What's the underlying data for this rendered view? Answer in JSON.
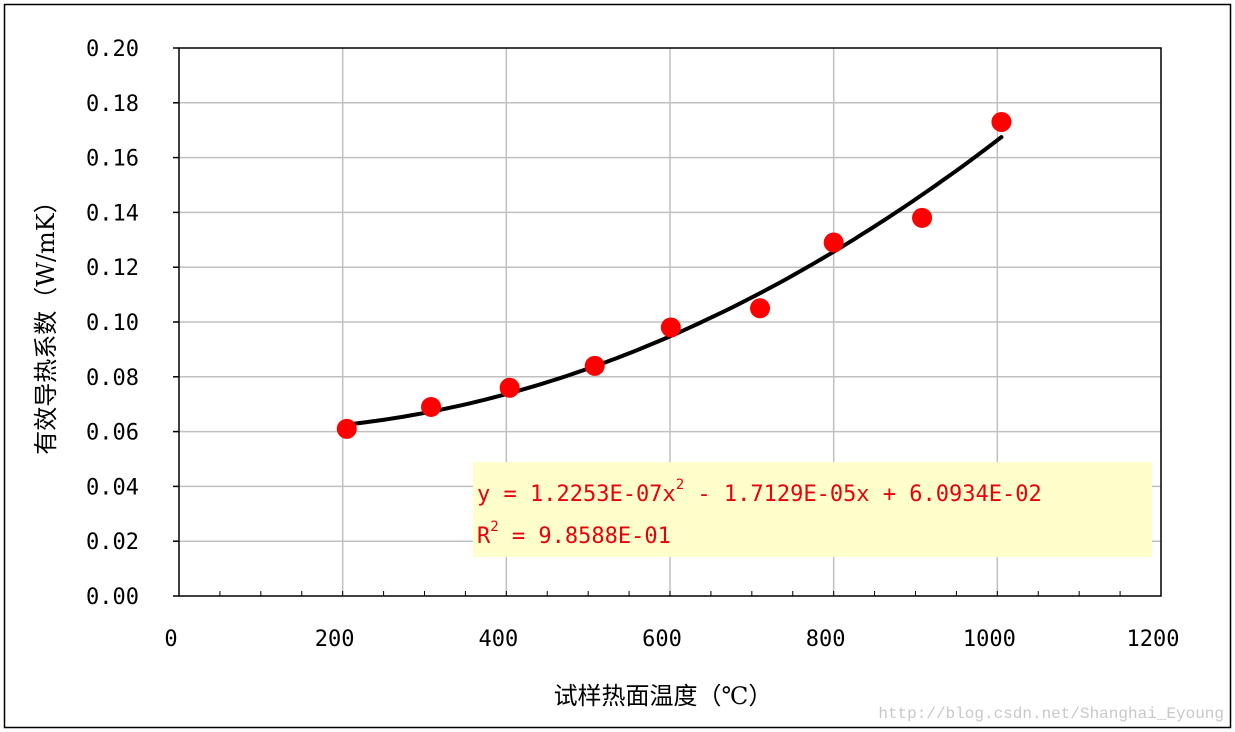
{
  "chart_data": {
    "type": "scatter",
    "title": "",
    "xlabel": "试样热面温度（℃）",
    "ylabel": "有效导热系数（W/mK）",
    "xlim": [
      0,
      1200
    ],
    "ylim": [
      0,
      0.2
    ],
    "x_ticks": [
      "0",
      "200",
      "400",
      "600",
      "800",
      "1000",
      "1200"
    ],
    "y_ticks": [
      "0.00",
      "0.02",
      "0.04",
      "0.06",
      "0.08",
      "0.10",
      "0.12",
      "0.14",
      "0.16",
      "0.18",
      "0.20"
    ],
    "grid": true,
    "series": [
      {
        "points": [
          {
            "x": 205,
            "y": 0.061
          },
          {
            "x": 308,
            "y": 0.069
          },
          {
            "x": 404,
            "y": 0.076
          },
          {
            "x": 508,
            "y": 0.084
          },
          {
            "x": 601,
            "y": 0.098
          },
          {
            "x": 710,
            "y": 0.105
          },
          {
            "x": 800,
            "y": 0.129
          },
          {
            "x": 908,
            "y": 0.138
          },
          {
            "x": 1005,
            "y": 0.173
          }
        ],
        "color": "#ff0000"
      }
    ],
    "trendline": {
      "type": "polynomial",
      "order": 2,
      "coefficients": [
        1.2253e-07,
        -1.7129e-05,
        0.060934
      ],
      "x_range": [
        205,
        1005
      ],
      "color": "#000000"
    },
    "annotation": {
      "equation_prefix": "y = 1.2253E-07x",
      "equation_exp": "2",
      "equation_suffix": " - 1.7129E-05x + 6.0934E-02",
      "r2_prefix": "R",
      "r2_exp": "2",
      "r2_suffix": " = 9.8588E-01",
      "background": "#ffffcc",
      "text_color": "#e8000b"
    }
  },
  "watermark": "http://blog.csdn.net/Shanghai_Eyoung"
}
